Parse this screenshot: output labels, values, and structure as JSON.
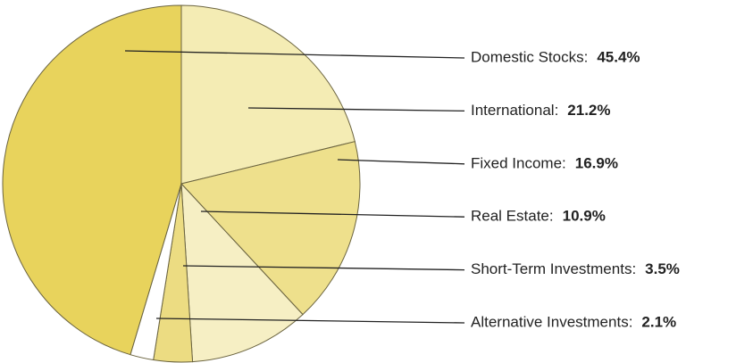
{
  "chart_data": {
    "type": "pie",
    "categories": [
      "Domestic Stocks:",
      "International:",
      "Fixed Income:",
      "Real Estate:",
      "Short-Term Investments:",
      "Alternative Investments:"
    ],
    "values": [
      45.4,
      21.2,
      16.9,
      10.9,
      3.5,
      2.1
    ],
    "value_labels": [
      "45.4%",
      "21.2%",
      "16.9%",
      "10.9%",
      "3.5%",
      "2.1%"
    ],
    "colors": [
      "#e8d35c",
      "#f4ecb4",
      "#eee08c",
      "#f6efc4",
      "#ecdc82",
      "#ffffff"
    ]
  }
}
